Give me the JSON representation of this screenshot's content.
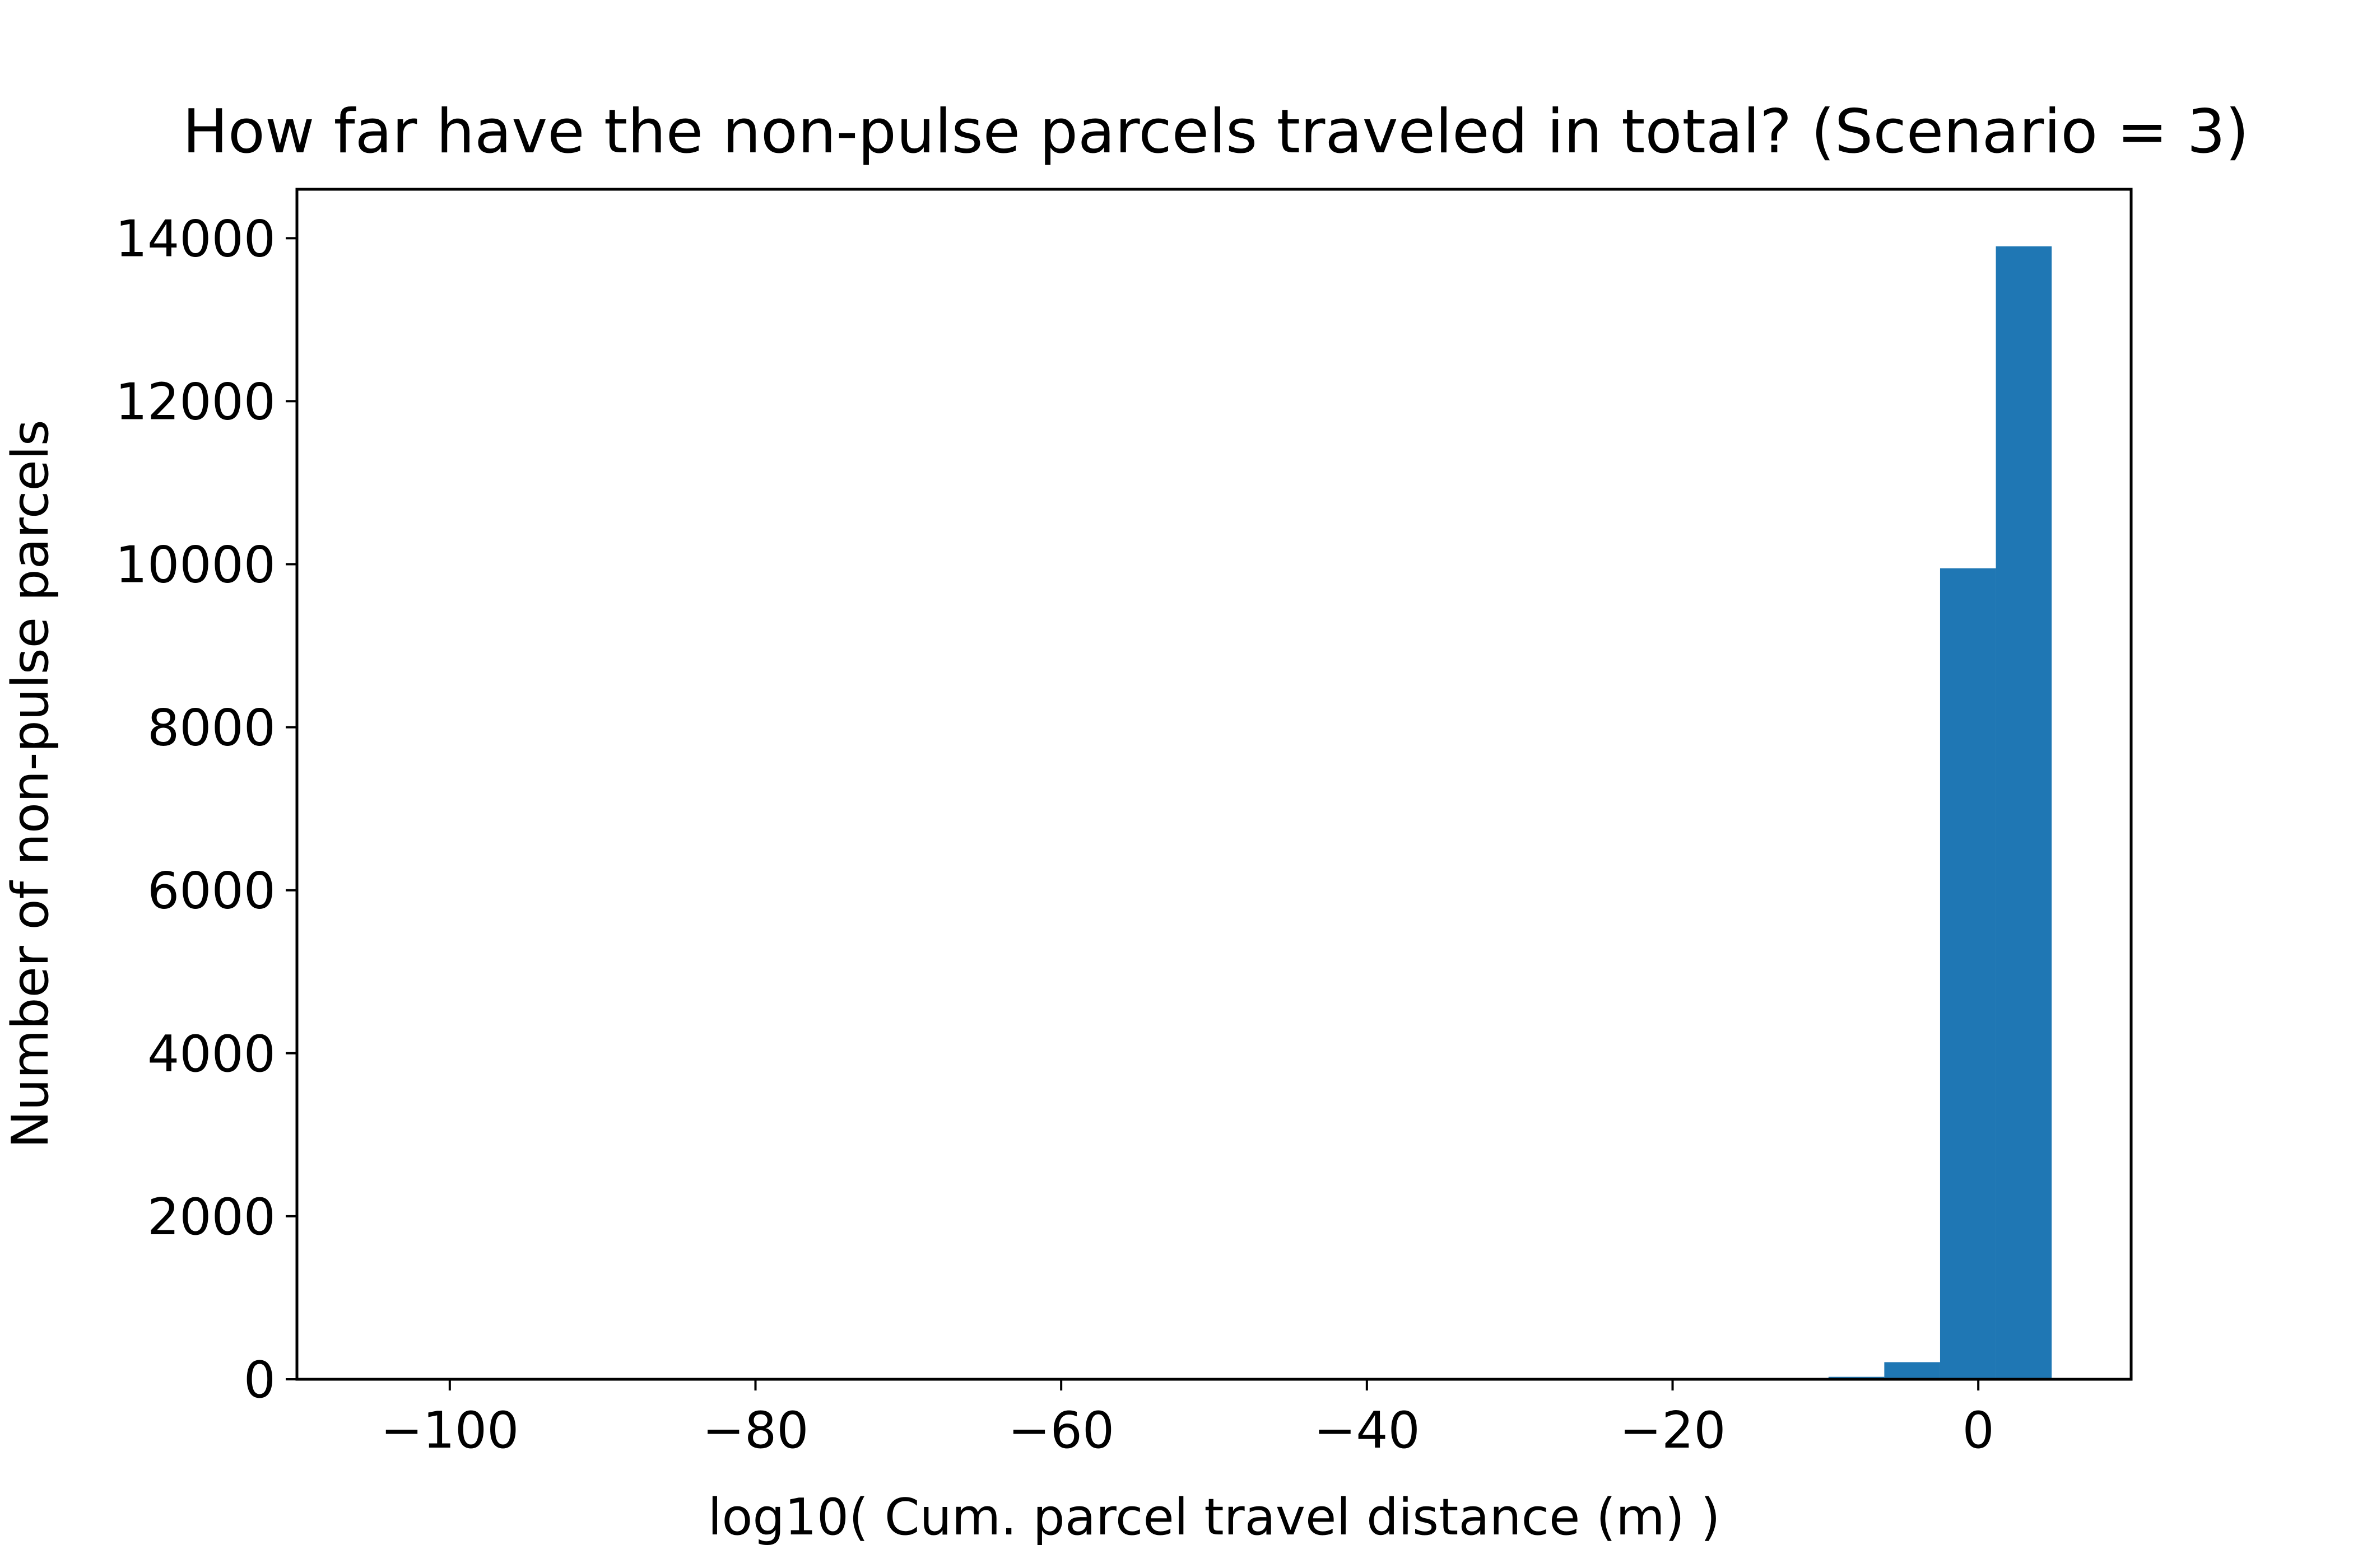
{
  "chart_data": {
    "type": "bar",
    "title": "How far have the non-pulse parcels traveled in total? (Scenario = 3)",
    "xlabel": "log10( Cum. parcel travel distance (m) )",
    "ylabel": "Number of non-pulse parcels",
    "xlim": [
      -110,
      10
    ],
    "ylim": [
      0,
      14600
    ],
    "xticks": [
      -100,
      -80,
      -60,
      -40,
      -20,
      0
    ],
    "xtick_labels": [
      "−100",
      "−80",
      "−60",
      "−40",
      "−20",
      "0"
    ],
    "yticks": [
      0,
      2000,
      4000,
      6000,
      8000,
      10000,
      12000,
      14000
    ],
    "ytick_labels": [
      "0",
      "2000",
      "4000",
      "6000",
      "8000",
      "10000",
      "12000",
      "14000"
    ],
    "bins": [
      {
        "x0": -9.8,
        "x1": -6.15,
        "count": 30
      },
      {
        "x0": -6.15,
        "x1": -2.5,
        "count": 210
      },
      {
        "x0": -2.5,
        "x1": 1.15,
        "count": 9950
      },
      {
        "x0": 1.15,
        "x1": 4.8,
        "count": 13900
      }
    ],
    "bar_color": "#1f77b4",
    "grid": false
  }
}
